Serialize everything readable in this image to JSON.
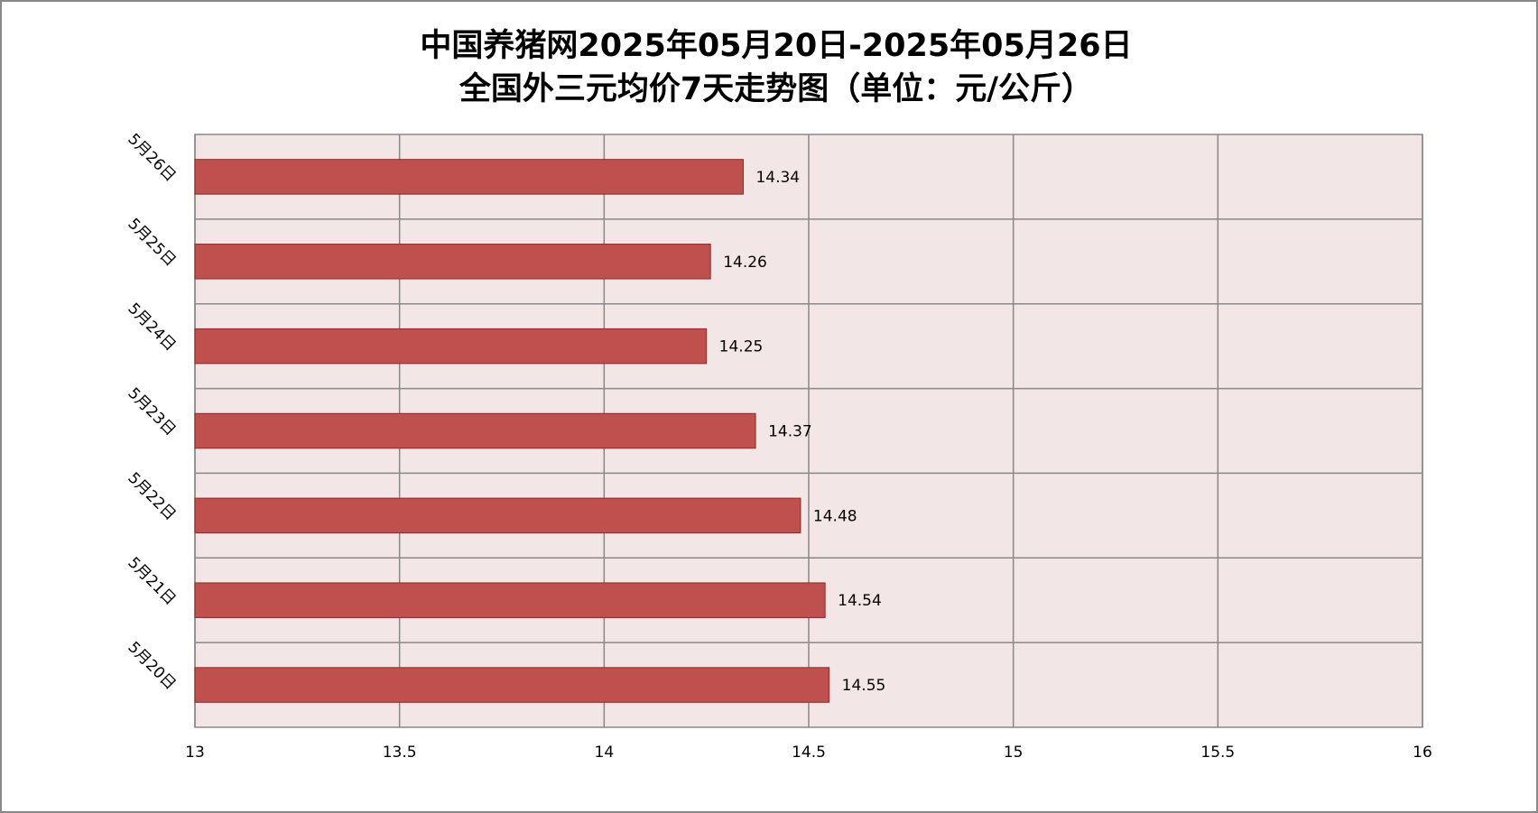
{
  "chart_data": {
    "type": "bar",
    "orientation": "horizontal",
    "title": "中国养猪网2025年05月20日-2025年05月26日",
    "subtitle": "全国外三元均价7天走势图（单位：元/公斤）",
    "categories": [
      "5月26日",
      "5月25日",
      "5月24日",
      "5月23日",
      "5月22日",
      "5月21日",
      "5月20日"
    ],
    "values": [
      14.34,
      14.26,
      14.25,
      14.37,
      14.48,
      14.54,
      14.55
    ],
    "color": "#c0504d",
    "xlim": [
      13,
      16
    ],
    "xticks": [
      13,
      13.5,
      14,
      14.5,
      15,
      15.5,
      16
    ],
    "grid": true
  }
}
